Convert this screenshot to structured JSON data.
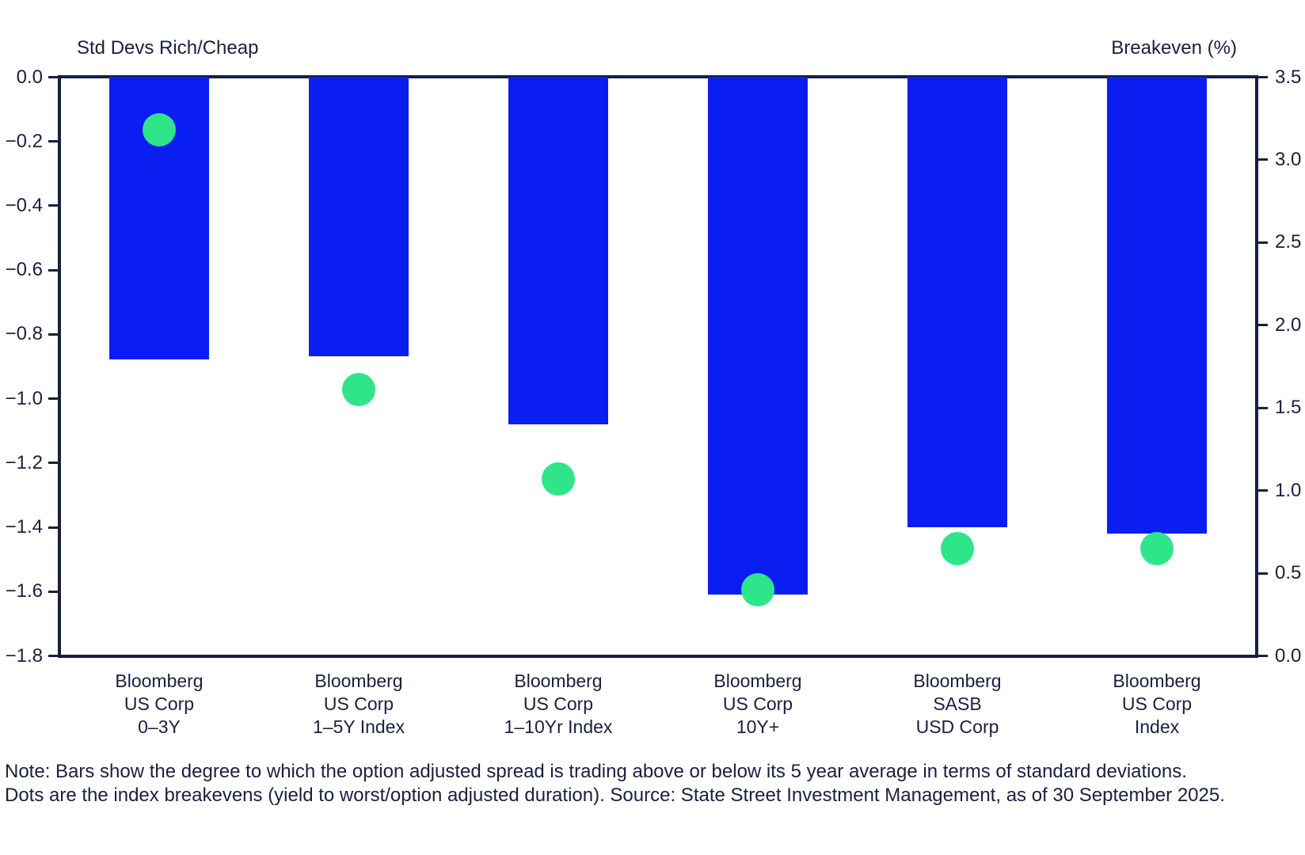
{
  "header": {
    "left_axis_title": "Std Devs Rich/Cheap",
    "right_axis_title": "Breakeven (%)"
  },
  "chart_data": {
    "type": "bar",
    "title": "",
    "categories": [
      [
        "Bloomberg",
        "US Corp",
        "0–3Y"
      ],
      [
        "Bloomberg",
        "US Corp",
        "1–5Y Index"
      ],
      [
        "Bloomberg",
        "US Corp",
        "1–10Yr Index"
      ],
      [
        "Bloomberg",
        "US Corp",
        "10Y+"
      ],
      [
        "Bloomberg",
        "SASB",
        "USD Corp"
      ],
      [
        "Bloomberg",
        "US Corp",
        "Index"
      ]
    ],
    "series": [
      {
        "name": "Option adjusted spread vs 5yr average (std devs, bars)",
        "axis": "left",
        "style": "bar",
        "values": [
          -0.88,
          -0.87,
          -1.08,
          -1.61,
          -1.4,
          -1.42
        ]
      },
      {
        "name": "Index breakeven % (dots)",
        "axis": "right",
        "style": "dot",
        "values": [
          3.18,
          1.61,
          1.07,
          0.4,
          0.65,
          0.65
        ]
      }
    ],
    "left_axis": {
      "title": "Std Devs Rich/Cheap",
      "max": 0,
      "min": -1.8,
      "ticks": [
        0,
        -0.2,
        -0.4,
        -0.6,
        -0.8,
        -1.0,
        -1.2,
        -1.4,
        -1.6,
        -1.8
      ],
      "tick_labels": [
        "0.0",
        "−0.2",
        "−0.4",
        "−0.6",
        "−0.8",
        "−1.0",
        "−1.2",
        "−1.4",
        "−1.6",
        "−1.8"
      ]
    },
    "right_axis": {
      "title": "Breakeven (%)",
      "max": 3.5,
      "min": 0,
      "ticks": [
        3.5,
        3.0,
        2.5,
        2.0,
        1.5,
        1.0,
        0.5,
        0
      ],
      "tick_labels": [
        "3.5",
        "3.0",
        "2.5",
        "2.0",
        "1.5",
        "1.0",
        "0.5",
        "0.0"
      ]
    },
    "grid": false,
    "legend": false,
    "colors": {
      "bar": "#0B1EF2",
      "dot": "#2EE58A",
      "axis": "#1A1F3F",
      "text": "#1A1F3F"
    }
  },
  "note": {
    "line1": "Note: Bars show the degree to which the option adjusted spread is trading above or below its 5 year average in terms of standard deviations.",
    "line2": "Dots are the index breakevens (yield to worst/option adjusted duration). Source: State Street Investment Management, as of 30 September 2025."
  }
}
